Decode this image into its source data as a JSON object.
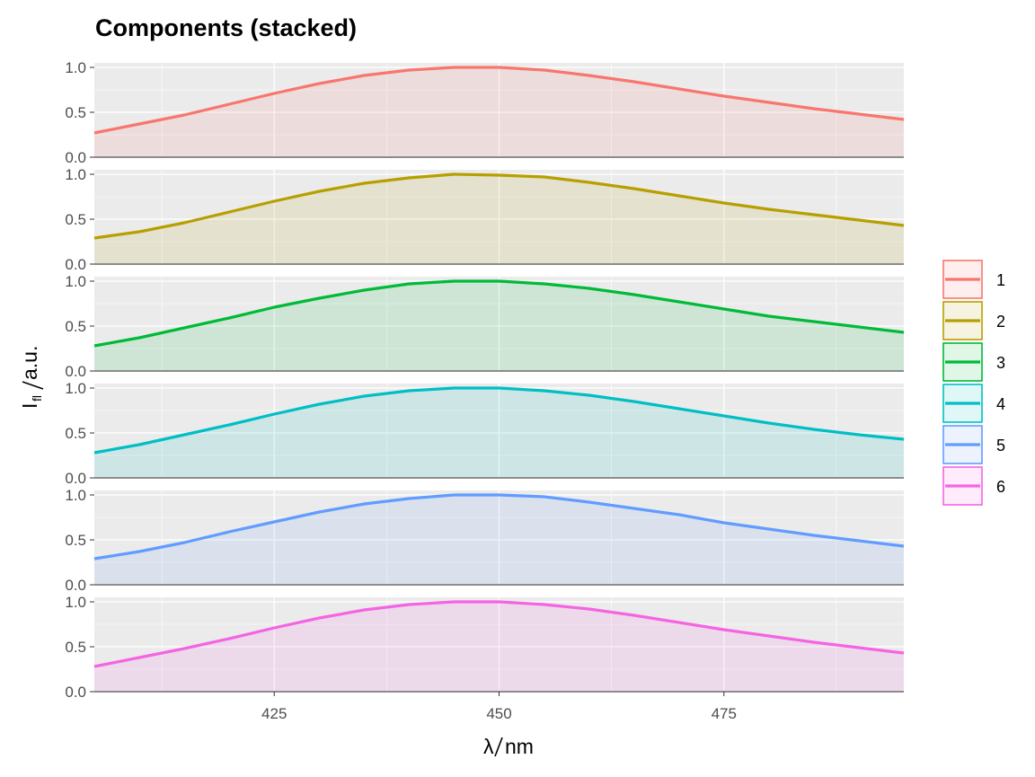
{
  "chart_data": {
    "type": "area",
    "title": "Components (stacked)",
    "xlabel": {
      "main": "λ",
      "unit": "nm"
    },
    "ylabel": {
      "main": "I",
      "sub": "fl",
      "unit": "a.u."
    },
    "xlim": [
      405,
      495
    ],
    "ylim": [
      0,
      1.05
    ],
    "x_ticks": [
      425,
      450,
      475
    ],
    "y_ticks": [
      0.0,
      0.5,
      1.0
    ],
    "y_tick_labels": [
      "0.0",
      "0.5",
      "1.0"
    ],
    "grid": true,
    "legend_position": "right",
    "x": [
      405,
      410,
      415,
      420,
      425,
      430,
      435,
      440,
      445,
      450,
      455,
      460,
      465,
      470,
      475,
      480,
      485,
      490,
      495
    ],
    "series": [
      {
        "name": "1",
        "color": "#F8766D",
        "values": [
          0.27,
          0.37,
          0.47,
          0.59,
          0.71,
          0.82,
          0.91,
          0.97,
          1.0,
          1.0,
          0.97,
          0.91,
          0.84,
          0.76,
          0.68,
          0.61,
          0.54,
          0.48,
          0.42
        ]
      },
      {
        "name": "2",
        "color": "#B79F00",
        "values": [
          0.29,
          0.36,
          0.46,
          0.58,
          0.7,
          0.81,
          0.9,
          0.96,
          1.0,
          0.99,
          0.97,
          0.91,
          0.84,
          0.76,
          0.68,
          0.61,
          0.55,
          0.49,
          0.43
        ]
      },
      {
        "name": "3",
        "color": "#00BA38",
        "values": [
          0.28,
          0.37,
          0.48,
          0.59,
          0.71,
          0.81,
          0.9,
          0.97,
          1.0,
          1.0,
          0.97,
          0.92,
          0.85,
          0.77,
          0.69,
          0.61,
          0.55,
          0.49,
          0.43
        ]
      },
      {
        "name": "4",
        "color": "#00BFC4",
        "values": [
          0.28,
          0.37,
          0.48,
          0.59,
          0.71,
          0.82,
          0.91,
          0.97,
          1.0,
          1.0,
          0.97,
          0.92,
          0.85,
          0.77,
          0.69,
          0.61,
          0.54,
          0.48,
          0.43
        ]
      },
      {
        "name": "5",
        "color": "#619CFF",
        "values": [
          0.29,
          0.37,
          0.47,
          0.59,
          0.7,
          0.81,
          0.9,
          0.96,
          1.0,
          1.0,
          0.98,
          0.92,
          0.85,
          0.78,
          0.69,
          0.62,
          0.55,
          0.49,
          0.43
        ]
      },
      {
        "name": "6",
        "color": "#F564E3",
        "values": [
          0.28,
          0.38,
          0.48,
          0.59,
          0.71,
          0.82,
          0.91,
          0.97,
          1.0,
          1.0,
          0.97,
          0.92,
          0.85,
          0.77,
          0.69,
          0.62,
          0.55,
          0.49,
          0.43
        ]
      }
    ]
  }
}
